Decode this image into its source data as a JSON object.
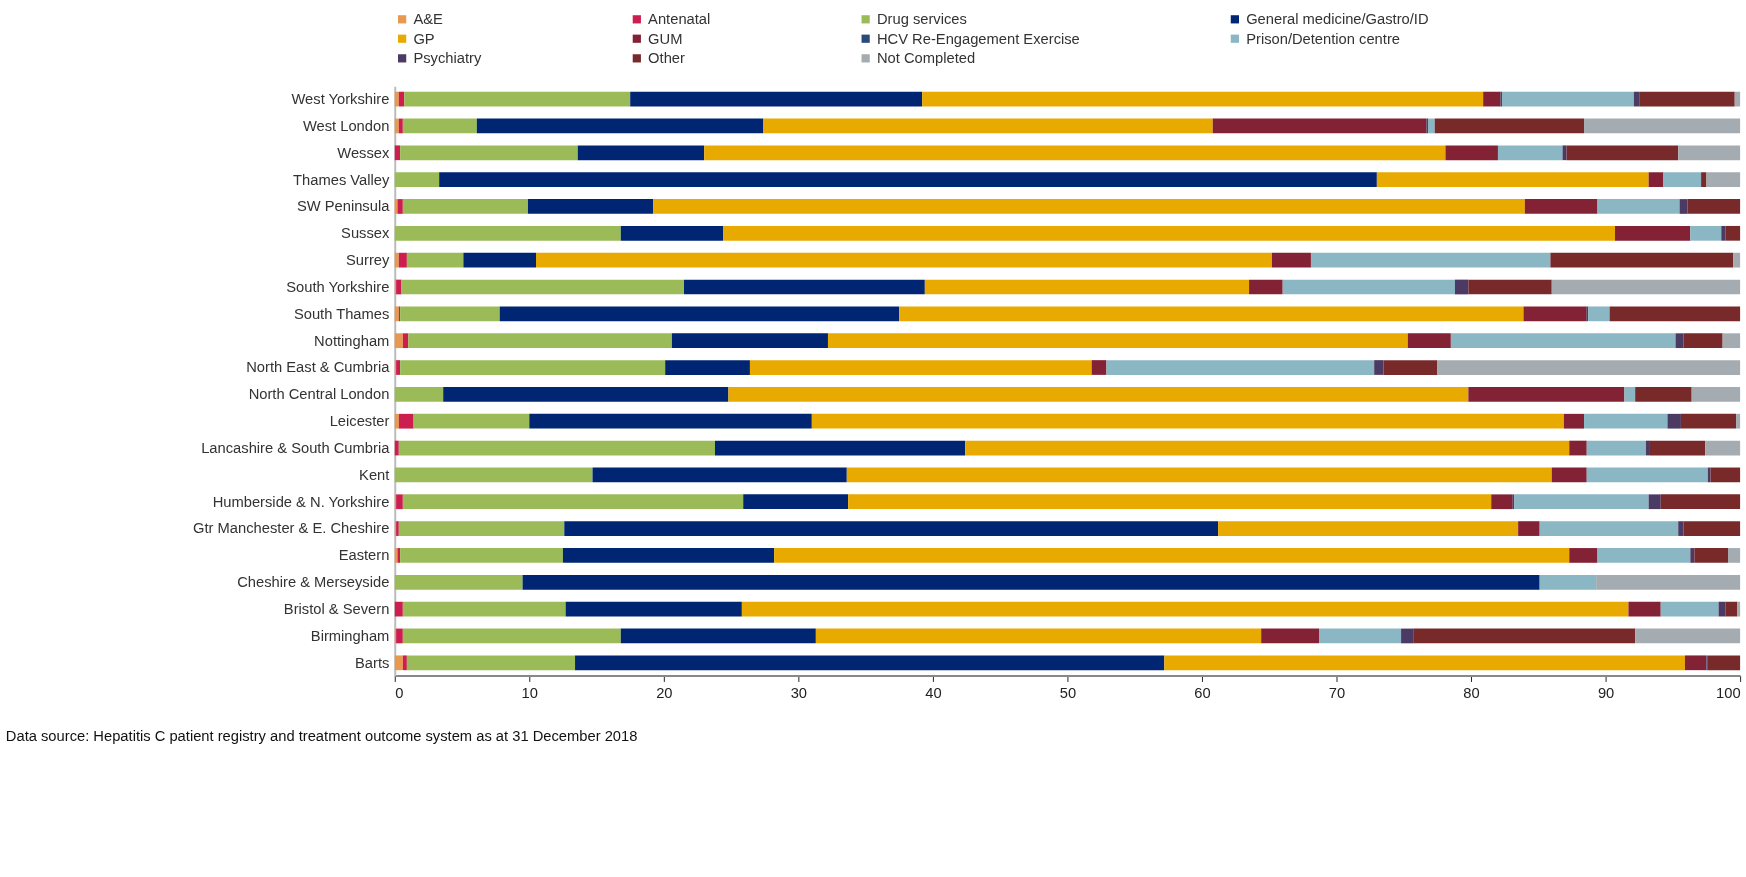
{
  "chart_data": {
    "type": "bar",
    "orientation": "horizontal",
    "stacked": true,
    "legend": "top",
    "grid": false,
    "categories": [
      "West Yorkshire",
      "West London",
      "Wessex",
      "Thames Valley",
      "SW Peninsula",
      "Sussex",
      "Surrey",
      "South Yorkshire",
      "South Thames",
      "Nottingham",
      "North East & Cumbria",
      "North Central London",
      "Leicester",
      "Lancashire & South Cumbria",
      "Kent",
      "Humberside & N. Yorkshire",
      "Gtr Manchester & E. Cheshire",
      "Eastern",
      "Cheshire & Merseyside",
      "Bristol & Severn",
      "Birmingham",
      "Barts"
    ],
    "xlim": [
      0,
      100
    ],
    "xticks": [
      0,
      10,
      20,
      30,
      40,
      50,
      60,
      70,
      80,
      90,
      100
    ],
    "annotations": [
      "Data source: Hepatitis C patient registry and treatment outcome system as at 31 December 2018"
    ],
    "series": [
      {
        "name": "A&E",
        "color": "#e8994f",
        "values": [
          0.3,
          0.3,
          0,
          0,
          0.2,
          0,
          0.3,
          0.1,
          0.3,
          0.6,
          0.1,
          0,
          0.3,
          0,
          0,
          0.1,
          0.1,
          0.2,
          0,
          0,
          0.1,
          0.6
        ]
      },
      {
        "name": "Antenatal",
        "color": "#cc1f4f",
        "values": [
          0.4,
          0.3,
          0.4,
          0,
          0.4,
          0,
          0.6,
          0.4,
          0.1,
          0.4,
          0.3,
          0,
          1.1,
          0.3,
          0,
          0.5,
          0.2,
          0.2,
          0,
          0.6,
          0.5,
          0.3
        ]
      },
      {
        "name": "Drug services",
        "color": "#9bbb59",
        "values": [
          16.8,
          5.5,
          13.2,
          3.3,
          9.3,
          16.8,
          4.2,
          21.0,
          7.4,
          19.6,
          19.7,
          3.6,
          8.6,
          23.5,
          14.7,
          25.3,
          12.3,
          12.1,
          9.5,
          12.1,
          16.2,
          12.5
        ]
      },
      {
        "name": "General medicine/Gastro/ID",
        "color": "#002673",
        "values": [
          21.7,
          21.3,
          9.4,
          69.7,
          9.3,
          7.6,
          5.4,
          17.9,
          29.7,
          11.6,
          6.3,
          21.2,
          21.0,
          18.6,
          18.9,
          7.8,
          48.6,
          15.7,
          75.6,
          13.1,
          14.5,
          43.8
        ]
      },
      {
        "name": "GP",
        "color": "#e8a900",
        "values": [
          41.7,
          33.4,
          55.1,
          20.2,
          64.8,
          66.3,
          54.7,
          24.1,
          46.4,
          43.1,
          25.4,
          55.0,
          55.9,
          44.9,
          52.4,
          47.8,
          22.3,
          59.1,
          0,
          65.9,
          33.1,
          38.7
        ]
      },
      {
        "name": "GUM",
        "color": "#832235",
        "values": [
          1.3,
          15.9,
          3.9,
          1.1,
          5.4,
          5.6,
          2.9,
          2.5,
          4.7,
          3.2,
          1.1,
          11.6,
          1.5,
          1.3,
          2.6,
          1.6,
          1.6,
          2.1,
          0,
          2.4,
          4.3,
          1.6
        ]
      },
      {
        "name": "HCV Re-Engagement Exercise",
        "color": "#2a4a7a",
        "values": [
          0.1,
          0.1,
          0,
          0,
          0,
          0,
          0,
          0,
          0.1,
          0,
          0,
          0,
          0,
          0,
          0,
          0.1,
          0,
          0,
          0,
          0,
          0,
          0.1
        ]
      },
      {
        "name": "Prison/Detention centre",
        "color": "#8bb6c4",
        "values": [
          9.8,
          0.5,
          4.8,
          2.8,
          6.1,
          2.3,
          17.8,
          12.8,
          1.6,
          16.7,
          19.9,
          0.8,
          6.2,
          4.4,
          9.0,
          10.0,
          10.3,
          6.9,
          4.2,
          4.3,
          6.1,
          0
        ]
      },
      {
        "name": "Psychiatry",
        "color": "#4b3a63",
        "values": [
          0.4,
          0,
          0.3,
          0,
          0.6,
          0.3,
          0,
          1.0,
          0,
          0.6,
          0.7,
          0,
          1.0,
          0.3,
          0.2,
          0.9,
          0.4,
          0.3,
          0,
          0.5,
          0.9,
          0
        ]
      },
      {
        "name": "Other",
        "color": "#782a2b",
        "values": [
          7.1,
          11.1,
          8.3,
          0.4,
          3.9,
          1.1,
          13.6,
          6.2,
          9.7,
          2.9,
          4.0,
          4.2,
          4.1,
          4.1,
          2.2,
          5.9,
          4.2,
          2.5,
          0,
          0.9,
          16.5,
          2.4
        ]
      },
      {
        "name": "Not Completed",
        "color": "#a4abb1",
        "values": [
          0.4,
          11.6,
          4.6,
          2.5,
          0,
          0,
          0.5,
          14.0,
          0,
          1.3,
          22.5,
          3.6,
          0.3,
          2.6,
          0,
          0,
          null,
          0.9,
          10.7,
          0.2,
          7.8,
          0
        ]
      }
    ]
  }
}
